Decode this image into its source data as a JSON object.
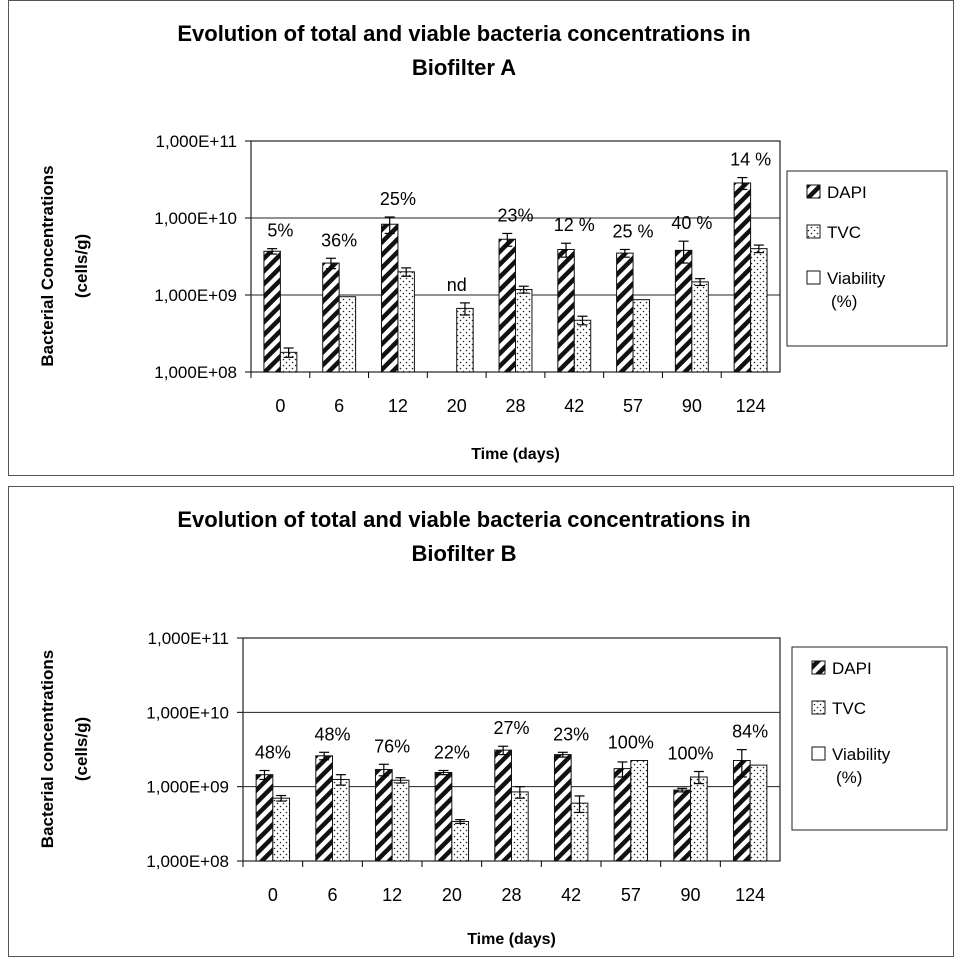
{
  "chart_data": [
    {
      "type": "bar",
      "title_line1": "Evolution of total and viable bacteria concentrations in",
      "title_line2": "Biofilter A",
      "xlabel": "Time (days)",
      "ylabel_line1": "Bacterial Concentrations",
      "ylabel_line2": "(cells/g)",
      "yscale": "log",
      "ylim": [
        100000000,
        100000000000
      ],
      "yticks": [
        {
          "value": 100000000,
          "label": "1,000E+08"
        },
        {
          "value": 1000000000,
          "label": "1,000E+09"
        },
        {
          "value": 10000000000,
          "label": "1,000E+10"
        },
        {
          "value": 100000000000,
          "label": "1,000E+11"
        }
      ],
      "grid": true,
      "legend_position": "right",
      "categories": [
        "0",
        "6",
        "12",
        "20",
        "28",
        "42",
        "57",
        "90",
        "124"
      ],
      "series": [
        {
          "name": "DAPI",
          "pattern": "hatch",
          "values": [
            3700000000,
            2600000000,
            8300000000,
            null,
            5300000000,
            3900000000,
            3500000000,
            3800000000,
            28500000000
          ],
          "errors": [
            300000000,
            400000000,
            2000000000,
            null,
            1000000000,
            800000000,
            400000000,
            1200000000,
            5000000000
          ]
        },
        {
          "name": "TVC",
          "pattern": "dots",
          "values": [
            180000000,
            950000000,
            2000000000,
            670000000,
            1180000000,
            470000000,
            870000000,
            1480000000,
            4000000000
          ],
          "errors": [
            25000000,
            0,
            250000000,
            120000000,
            120000000,
            60000000,
            0,
            150000000,
            450000000
          ]
        }
      ],
      "legend_third": "Viability",
      "legend_third_sub": "(%)",
      "annotations": [
        "5%",
        "36%",
        "25%",
        "nd",
        "23%",
        "12 %",
        "25 %",
        "40 %",
        "14 %"
      ]
    },
    {
      "type": "bar",
      "title_line1": "Evolution of total and viable bacteria concentrations in",
      "title_line2": "Biofilter B",
      "xlabel": "Time (days)",
      "ylabel_line1": "Bacterial concentrations",
      "ylabel_line2": "(cells/g)",
      "yscale": "log",
      "ylim": [
        100000000,
        100000000000
      ],
      "yticks": [
        {
          "value": 100000000,
          "label": "1,000E+08"
        },
        {
          "value": 1000000000,
          "label": "1,000E+09"
        },
        {
          "value": 10000000000,
          "label": "1,000E+10"
        },
        {
          "value": 100000000000,
          "label": "1,000E+11"
        }
      ],
      "grid": true,
      "legend_position": "right",
      "categories": [
        "0",
        "6",
        "12",
        "20",
        "28",
        "42",
        "57",
        "90",
        "124"
      ],
      "series": [
        {
          "name": "DAPI",
          "pattern": "hatch",
          "values": [
            1450000000,
            2600000000,
            1700000000,
            1550000000,
            3100000000,
            2700000000,
            1750000000,
            900000000,
            2250000000
          ],
          "errors": [
            200000000,
            300000000,
            300000000,
            100000000,
            400000000,
            200000000,
            400000000,
            50000000,
            900000000
          ]
        },
        {
          "name": "TVC",
          "pattern": "dots",
          "values": [
            700000000,
            1250000000,
            1220000000,
            340000000,
            850000000,
            600000000,
            2250000000,
            1350000000,
            1950000000
          ],
          "errors": [
            60000000,
            200000000,
            100000000,
            20000000,
            150000000,
            150000000,
            0,
            250000000,
            0
          ]
        }
      ],
      "legend_third": "Viability",
      "legend_third_sub": "(%)",
      "annotations": [
        "48%",
        "48%",
        "76%",
        "22%",
        "27%",
        "23%",
        "100%",
        "100%",
        "84%"
      ]
    }
  ]
}
